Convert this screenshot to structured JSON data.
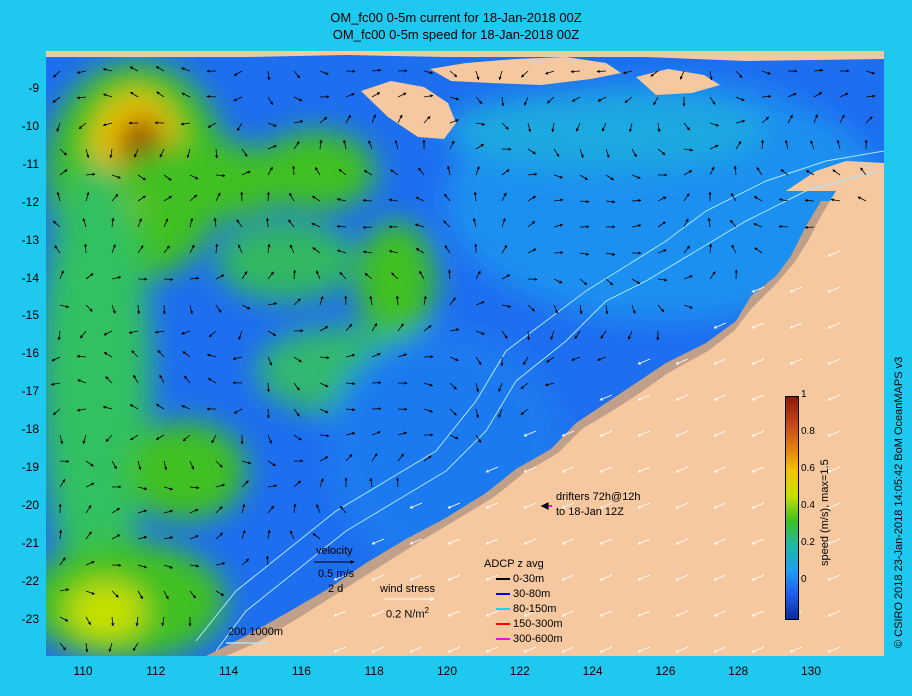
{
  "title_line1": "OM_fc00 0-5m current for 18-Jan-2018 00Z",
  "title_line2": "OM_fc00 0-5m speed for 18-Jan-2018 00Z",
  "y_ticks": [
    "-9",
    "-10",
    "-11",
    "-12",
    "-13",
    "-14",
    "-15",
    "-16",
    "-17",
    "-18",
    "-19",
    "-20",
    "-21",
    "-22",
    "-23"
  ],
  "x_ticks": [
    "110",
    "112",
    "114",
    "116",
    "118",
    "120",
    "122",
    "124",
    "126",
    "128",
    "130"
  ],
  "colorbar": {
    "label": "speed (m/s), max=1.5",
    "ticks": [
      "1",
      "0.8",
      "0.6",
      "0.4",
      "0.2",
      "0"
    ],
    "colors": [
      "#8b1a00",
      "#c0441a",
      "#e07a10",
      "#f0c400",
      "#c8e000",
      "#40c020",
      "#20b8a0",
      "#1ea0f0",
      "#1e5ef0",
      "#0a2a9a"
    ]
  },
  "credit": "© CSIRO 2018  23-Jan-2018 14:05:42 BoM OceanMAPS v3",
  "velocity_legend": {
    "title": "velocity",
    "scale": "0.5 m/s",
    "days": "2 d"
  },
  "wind_legend": {
    "title": "wind stress",
    "scale": "0.2 N/m",
    "superscript": "2"
  },
  "drifters_legend": {
    "line1": "drifters 72h@12h",
    "line2": "to 18-Jan 12Z"
  },
  "adcp_legend": {
    "title": "ADCP z avg",
    "items": [
      {
        "label": "0-30m",
        "color": "#000000"
      },
      {
        "label": "30-80m",
        "color": "#0000ff"
      },
      {
        "label": "80-150m",
        "color": "#00e0e0"
      },
      {
        "label": "150-300m",
        "color": "#ff0000"
      },
      {
        "label": "300-600m",
        "color": "#ff00ff"
      }
    ]
  },
  "isobath_legend": "200  1000m",
  "colors": {
    "land": "#f5c8a0",
    "shelf": "#c0a088",
    "frame": "#1ec8ee",
    "isobath": "#a8e8ff"
  }
}
